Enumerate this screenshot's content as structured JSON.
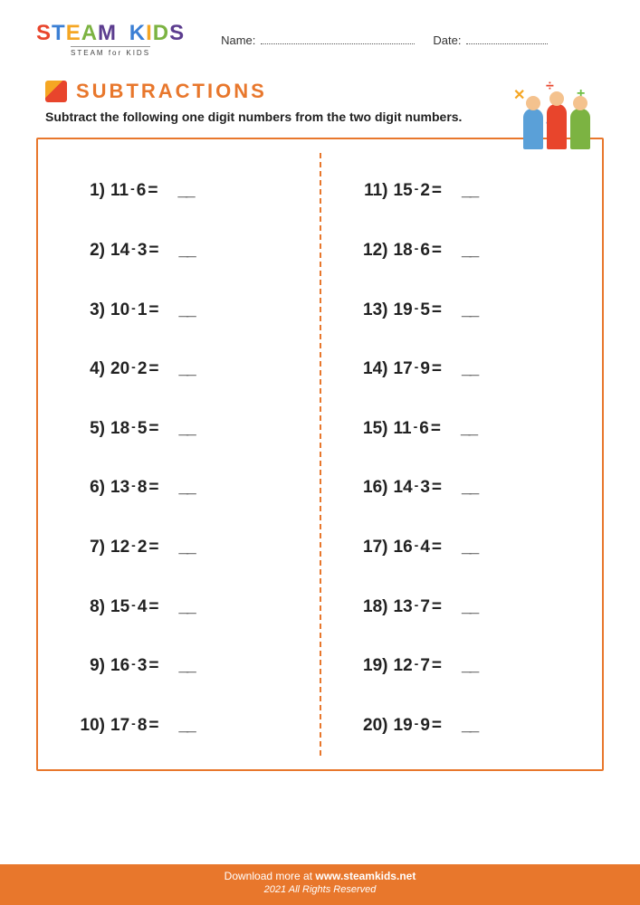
{
  "colors": {
    "accent": "#e8772c",
    "title": "#e8772c",
    "text": "#222222",
    "logo_palette": [
      "#e8452c",
      "#3b7fd4",
      "#f5a623",
      "#7cb342",
      "#5c3d8f"
    ]
  },
  "header": {
    "logo_main": "STEAM KIDS",
    "logo_sub": "STEAM for KIDS",
    "name_label": "Name:",
    "date_label": "Date:"
  },
  "title": "SUBTRACTIONS",
  "instructions": "Subtract the following one digit numbers from the two digit numbers.",
  "worksheet": {
    "type": "math-problems",
    "operator": "-",
    "operator_label": "minus",
    "blank": "__",
    "columns": 2,
    "problems_left": [
      {
        "n": "1)",
        "a": "11",
        "b": "6"
      },
      {
        "n": "2)",
        "a": "14",
        "b": "3"
      },
      {
        "n": "3)",
        "a": "10",
        "b": "1"
      },
      {
        "n": "4)",
        "a": "20",
        "b": "2"
      },
      {
        "n": "5)",
        "a": "18",
        "b": "5"
      },
      {
        "n": "6)",
        "a": "13",
        "b": "8"
      },
      {
        "n": "7)",
        "a": "12",
        "b": "2"
      },
      {
        "n": "8)",
        "a": "15",
        "b": "4"
      },
      {
        "n": "9)",
        "a": "16",
        "b": "3"
      },
      {
        "n": "10)",
        "a": "17",
        "b": "8"
      }
    ],
    "problems_right": [
      {
        "n": "11)",
        "a": "15",
        "b": "2"
      },
      {
        "n": "12)",
        "a": "18",
        "b": "6"
      },
      {
        "n": "13)",
        "a": "19",
        "b": "5"
      },
      {
        "n": "14)",
        "a": "17",
        "b": "9"
      },
      {
        "n": "15)",
        "a": "11",
        "b": "6"
      },
      {
        "n": "16)",
        "a": "14",
        "b": "3"
      },
      {
        "n": "17)",
        "a": "16",
        "b": "4"
      },
      {
        "n": "18)",
        "a": "13",
        "b": "7"
      },
      {
        "n": "19)",
        "a": "12",
        "b": "7"
      },
      {
        "n": "20)",
        "a": "19",
        "b": "9"
      }
    ]
  },
  "footer": {
    "download_prefix": "Download more at ",
    "site": "www.steamkids.net",
    "copyright": "2021 All Rights Reserved"
  }
}
